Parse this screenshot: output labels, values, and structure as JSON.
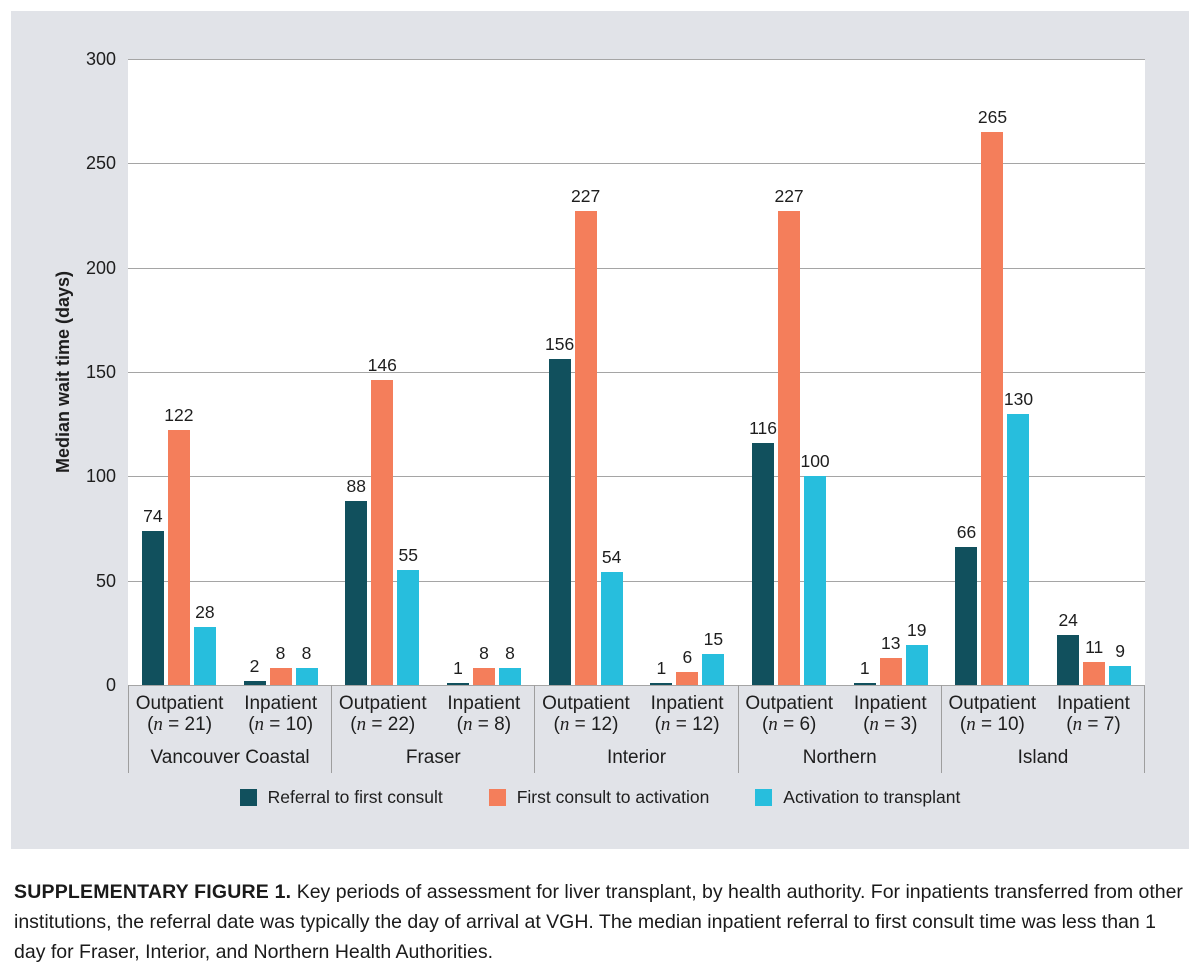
{
  "figure": {
    "caption_lead": "SUPPLEMENTARY FIGURE 1.",
    "caption_body": " Key periods of assessment for liver transplant, by health authority. For inpatients transferred from other institutions, the referral date was typically the day of arrival at VGH. The median inpatient referral to first consult time was less than 1 day for Fraser, Interior, and Northern Health Authorities."
  },
  "colors": {
    "panel_background": "#e1e3e8",
    "plot_background": "#ffffff",
    "gridline": "#a5a5a5",
    "text": "#1e1e1e"
  },
  "chart_data": {
    "type": "bar",
    "title": "",
    "xlabel": "",
    "ylabel": "Median wait time (days)",
    "ylim": [
      0,
      300
    ],
    "yticks": [
      0,
      50,
      100,
      150,
      200,
      250,
      300
    ],
    "grid": true,
    "legend_position": "bottom",
    "series": [
      {
        "name": "Referral to first consult",
        "color": "#11505d"
      },
      {
        "name": "First consult to activation",
        "color": "#f47e5b"
      },
      {
        "name": "Activation to transplant",
        "color": "#27bedd"
      }
    ],
    "groups": [
      {
        "name": "Vancouver Coastal",
        "subgroups": [
          {
            "label": "Outpatient",
            "n": 21,
            "values": [
              74,
              122,
              28
            ]
          },
          {
            "label": "Inpatient",
            "n": 10,
            "values": [
              2,
              8,
              8
            ]
          }
        ]
      },
      {
        "name": "Fraser",
        "subgroups": [
          {
            "label": "Outpatient",
            "n": 22,
            "values": [
              88,
              146,
              55
            ]
          },
          {
            "label": "Inpatient",
            "n": 8,
            "values": [
              1,
              8,
              8
            ]
          }
        ]
      },
      {
        "name": "Interior",
        "subgroups": [
          {
            "label": "Outpatient",
            "n": 12,
            "values": [
              156,
              227,
              54
            ]
          },
          {
            "label": "Inpatient",
            "n": 12,
            "values": [
              1,
              6,
              15
            ]
          }
        ]
      },
      {
        "name": "Northern",
        "subgroups": [
          {
            "label": "Outpatient",
            "n": 6,
            "values": [
              116,
              227,
              100
            ]
          },
          {
            "label": "Inpatient",
            "n": 3,
            "values": [
              1,
              13,
              19
            ]
          }
        ]
      },
      {
        "name": "Island",
        "subgroups": [
          {
            "label": "Outpatient",
            "n": 10,
            "values": [
              66,
              265,
              130
            ]
          },
          {
            "label": "Inpatient",
            "n": 7,
            "values": [
              24,
              11,
              9
            ]
          }
        ]
      }
    ]
  }
}
